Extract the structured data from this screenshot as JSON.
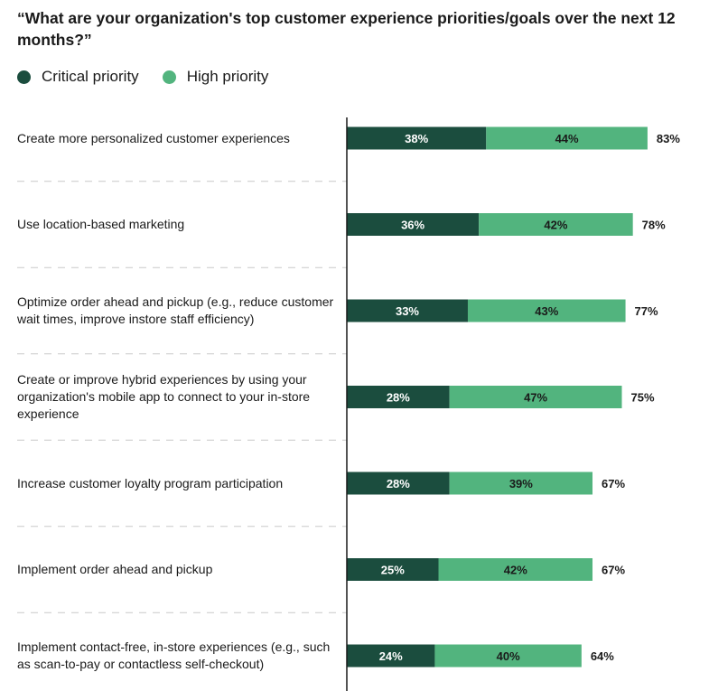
{
  "title": "“What are your organization's top customer experience priorities/goals over the next 12 months?”",
  "legend": [
    {
      "label": "Critical priority",
      "color": "#1b4d3e"
    },
    {
      "label": "High priority",
      "color": "#52b47e"
    }
  ],
  "chart_data": {
    "type": "bar",
    "orientation": "horizontal",
    "stacked": true,
    "categories": [
      "Create more personalized customer experiences",
      "Use location-based marketing",
      "Optimize order ahead and pickup (e.g., reduce customer wait times, improve instore staff efficiency)",
      "Create or improve hybrid experiences by using your organization's mobile app to connect to your in-store experience",
      "Increase customer loyalty program participation",
      "Implement order ahead and pickup",
      "Implement contact-free, in-store experiences (e.g., such as scan-to-pay or contactless self-checkout)"
    ],
    "series": [
      {
        "name": "Critical priority",
        "color": "#1b4d3e",
        "values": [
          38,
          36,
          33,
          28,
          28,
          25,
          24
        ]
      },
      {
        "name": "High priority",
        "color": "#52b47e",
        "values": [
          44,
          42,
          43,
          47,
          39,
          42,
          40
        ]
      }
    ],
    "totals": [
      83,
      78,
      77,
      75,
      67,
      67,
      64
    ],
    "value_suffix": "%",
    "xlim": [
      0,
      100
    ],
    "grid": false
  }
}
